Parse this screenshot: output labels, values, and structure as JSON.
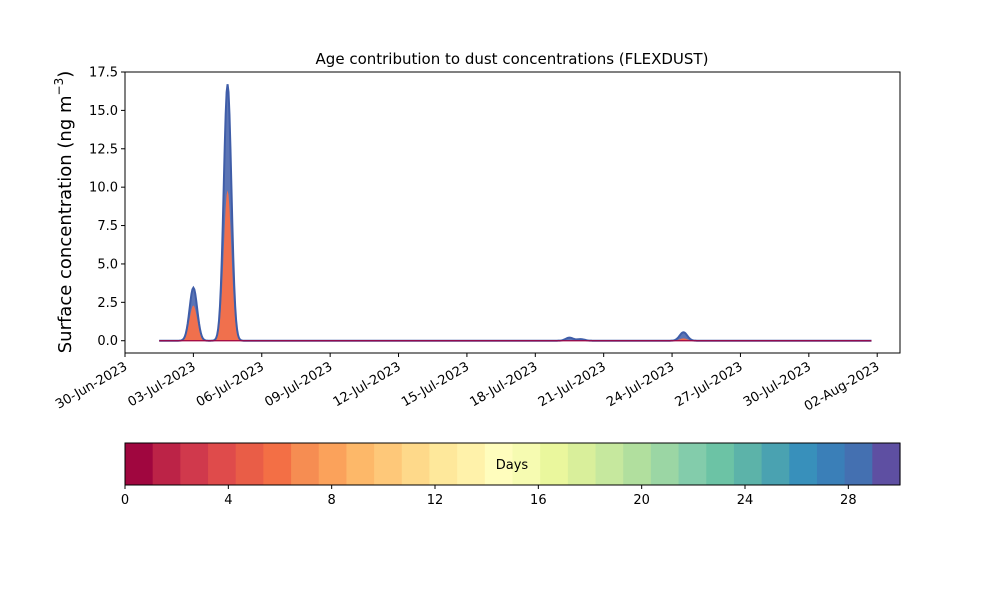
{
  "chart_data": {
    "type": "area",
    "title": "Age contribution to dust concentrations (FLEXDUST)",
    "ylabel_main": "Surface concentration (ng m",
    "ylabel_sup": "−3",
    "ylabel_close": ")",
    "xlabel": "",
    "ylim": [
      -0.8,
      17.5
    ],
    "yticks": [
      0.0,
      2.5,
      5.0,
      7.5,
      10.0,
      12.5,
      15.0,
      17.5
    ],
    "ytick_labels": [
      "0.0",
      "2.5",
      "5.0",
      "7.5",
      "10.0",
      "12.5",
      "15.0",
      "17.5"
    ],
    "xlim": [
      "2023-06-30T00:00",
      "2023-08-03T00:00"
    ],
    "xticks": [
      "2023-06-30",
      "2023-07-03",
      "2023-07-06",
      "2023-07-09",
      "2023-07-12",
      "2023-07-15",
      "2023-07-18",
      "2023-07-21",
      "2023-07-24",
      "2023-07-27",
      "2023-07-30",
      "2023-08-02"
    ],
    "xtick_labels": [
      "30-Jun-2023",
      "03-Jul-2023",
      "06-Jul-2023",
      "09-Jul-2023",
      "12-Jul-2023",
      "15-Jul-2023",
      "18-Jul-2023",
      "21-Jul-2023",
      "24-Jul-2023",
      "27-Jul-2023",
      "30-Jul-2023",
      "02-Aug-2023"
    ],
    "data_range": [
      "2023-07-01T12:00",
      "2023-08-01T18:00"
    ],
    "peaks": [
      {
        "x": "2023-07-03T00:00",
        "total": 3.45,
        "young": 2.3
      },
      {
        "x": "2023-07-04T12:00",
        "total": 16.7,
        "young": 9.8
      },
      {
        "x": "2023-07-19T12:00",
        "total": 0.2,
        "young": 0.0
      },
      {
        "x": "2023-07-20T00:00",
        "total": 0.1,
        "young": 0.0
      },
      {
        "x": "2023-07-24T12:00",
        "total": 0.55,
        "young": 0.15
      }
    ],
    "total_color": "#3f5da8",
    "young_color": "#f0704d",
    "baseline_color": "#9e0142",
    "colorbar": {
      "label": "Days",
      "range": [
        0,
        30
      ],
      "ticks": [
        0,
        4,
        8,
        12,
        16,
        20,
        24,
        28
      ],
      "tick_labels": [
        "0",
        "4",
        "8",
        "12",
        "16",
        "20",
        "24",
        "28"
      ],
      "colors": [
        "#a0063f",
        "#bc2347",
        "#d0394c",
        "#df4b4b",
        "#e95d47",
        "#f36f45",
        "#f68d52",
        "#fba25b",
        "#fdb869",
        "#fec879",
        "#fed98a",
        "#fee89b",
        "#fff2aa",
        "#fffdbd",
        "#f6fbb1",
        "#eaf79d",
        "#d9ef9b",
        "#c6e89e",
        "#b1df9e",
        "#9bd6a4",
        "#83ccab",
        "#6cc3a5",
        "#5cb3a9",
        "#4aa2b1",
        "#3890bb",
        "#3a7fb8",
        "#4470b1",
        "#5e4fa2"
      ]
    }
  }
}
